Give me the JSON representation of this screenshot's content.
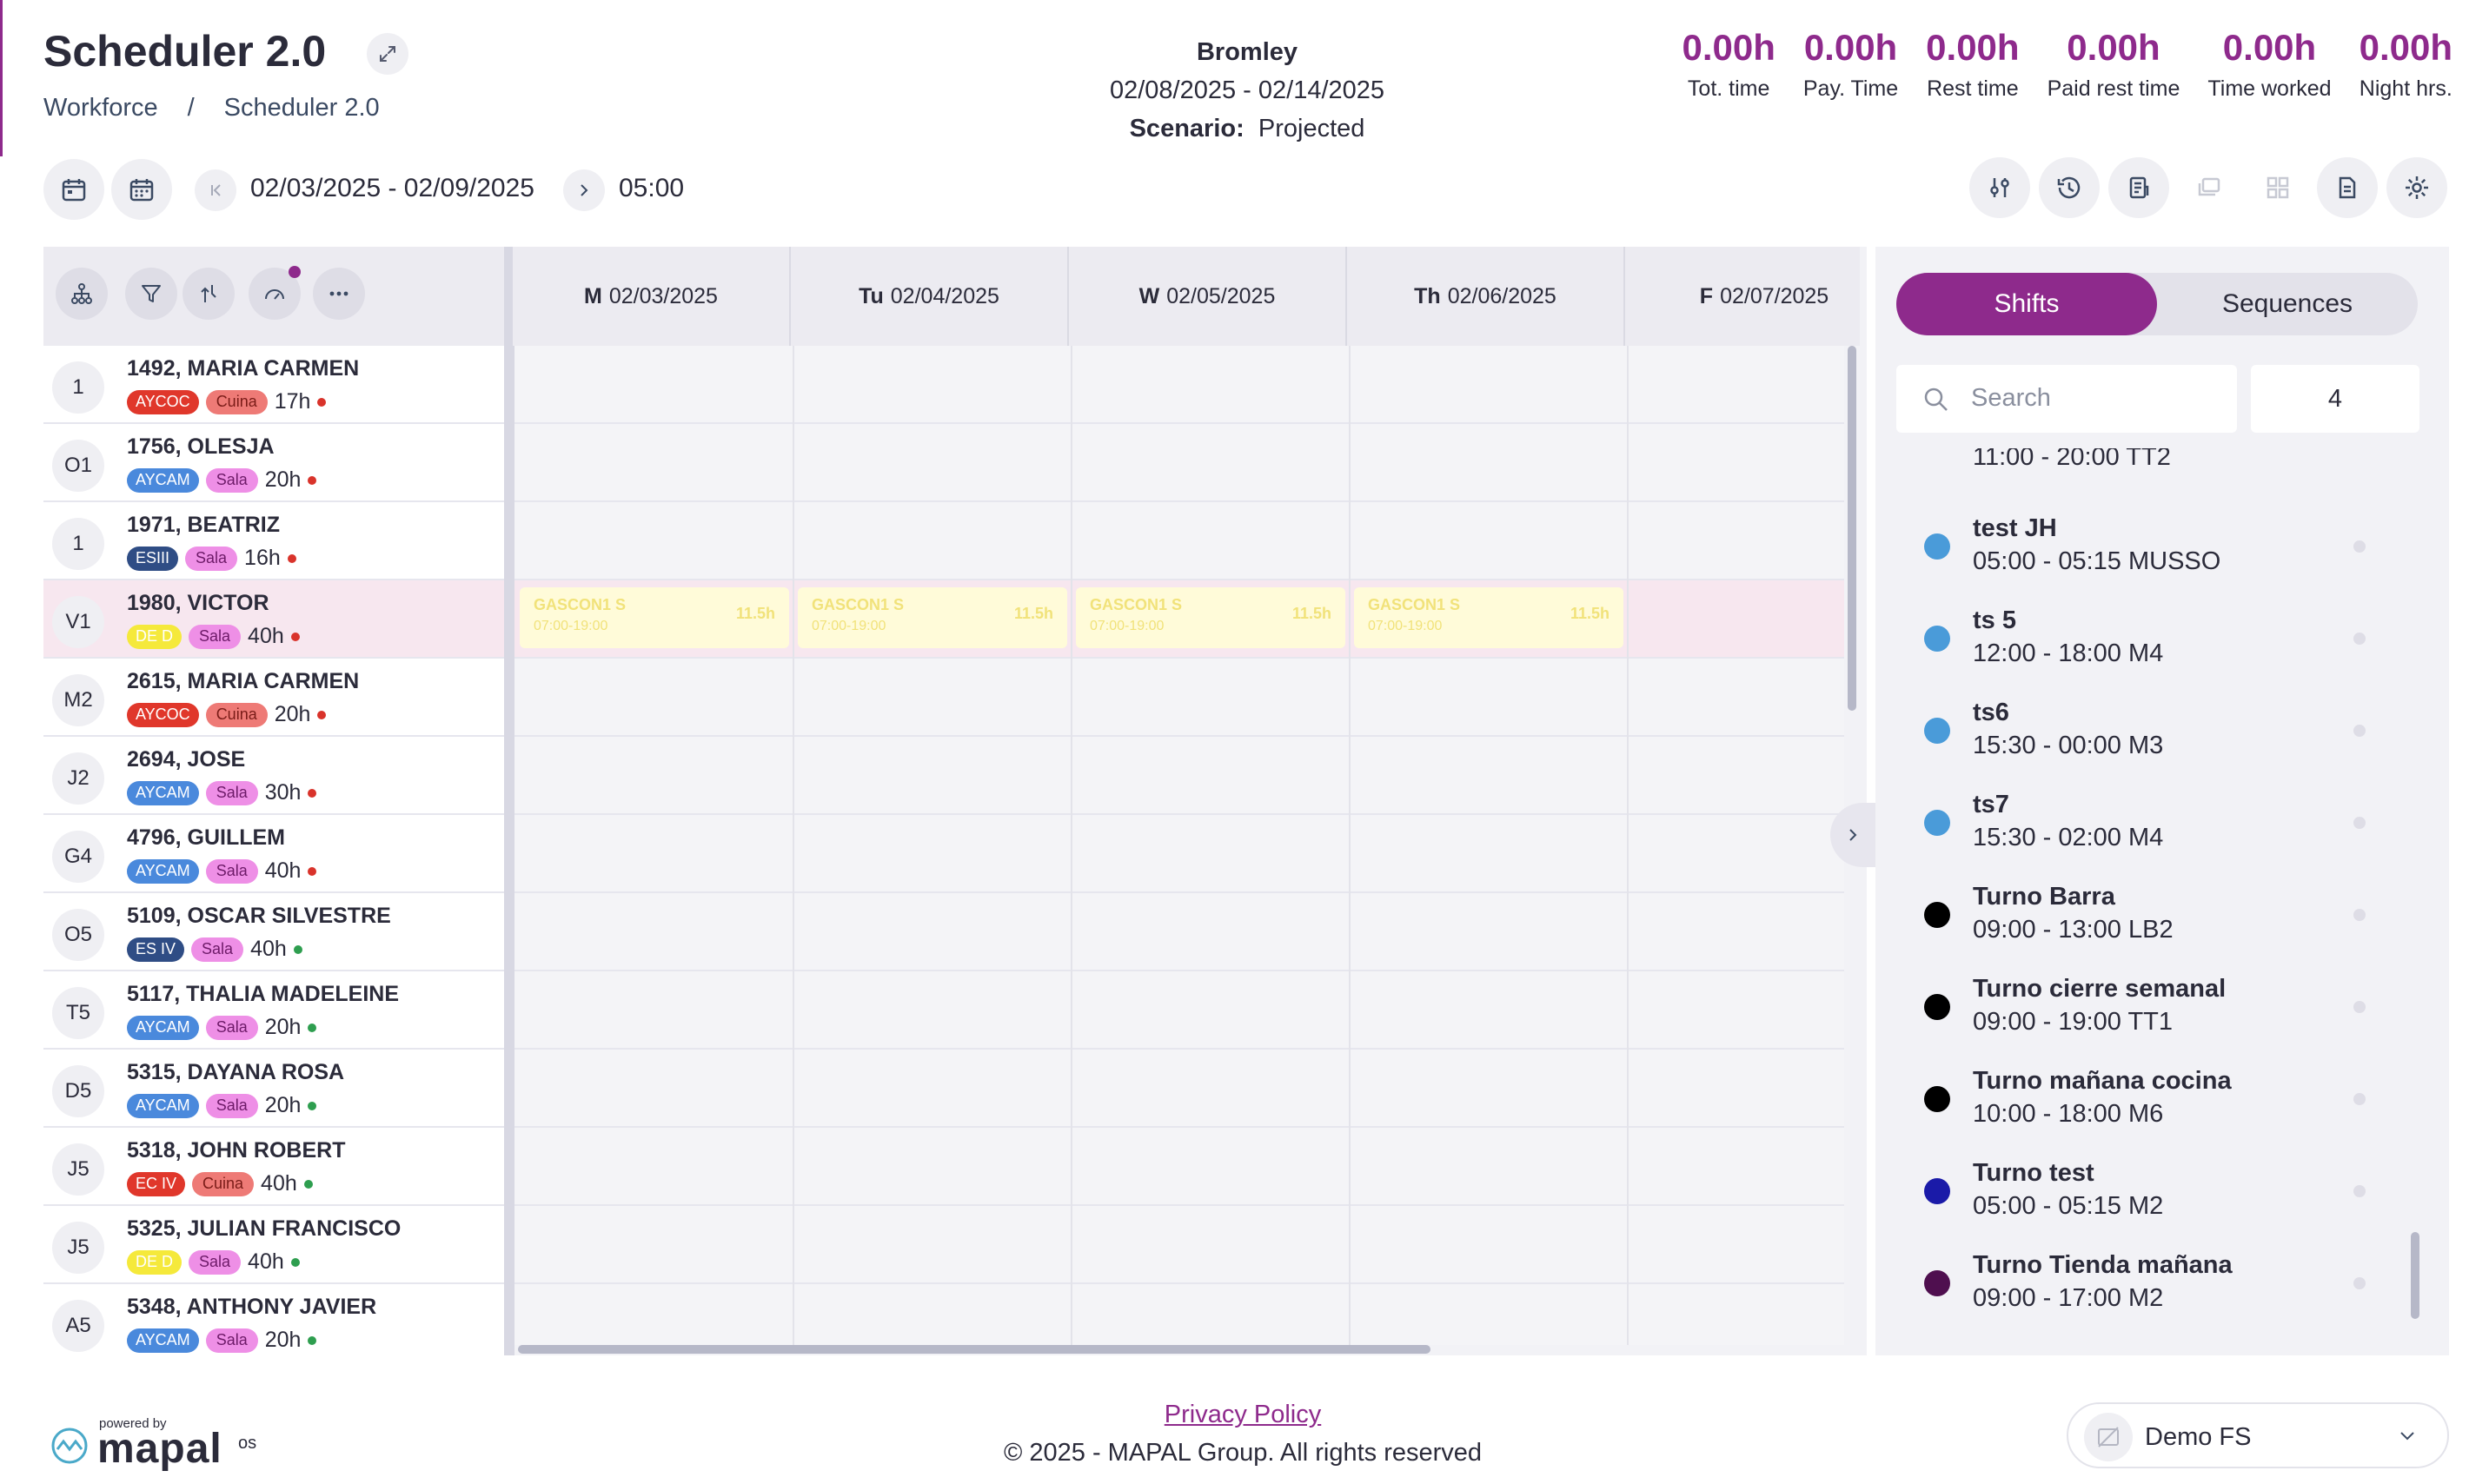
{
  "header": {
    "title": "Scheduler 2.0",
    "breadcrumb": [
      "Workforce",
      "/",
      "Scheduler 2.0"
    ],
    "location": "Bromley",
    "period": "02/08/2025 - 02/14/2025",
    "scenario_label": "Scenario:",
    "scenario_value": "Projected"
  },
  "metrics": [
    {
      "value": "0.00h",
      "label": "Tot. time"
    },
    {
      "value": "0.00h",
      "label": "Pay. Time"
    },
    {
      "value": "0.00h",
      "label": "Rest time"
    },
    {
      "value": "0.00h",
      "label": "Paid rest time"
    },
    {
      "value": "0.00h",
      "label": "Time worked"
    },
    {
      "value": "0.00h",
      "label": "Night hrs."
    }
  ],
  "toolbar": {
    "date_range": "02/03/2025 - 02/09/2025",
    "time": "05:00"
  },
  "days": [
    {
      "abbr": "M",
      "date": "02/03/2025"
    },
    {
      "abbr": "Tu",
      "date": "02/04/2025"
    },
    {
      "abbr": "W",
      "date": "02/05/2025"
    },
    {
      "abbr": "Th",
      "date": "02/06/2025"
    },
    {
      "abbr": "F",
      "date": "02/07/2025"
    }
  ],
  "employees": [
    {
      "initials": "1",
      "name": "1492, MARIA CARMEN",
      "tag1": "AYCOC",
      "tag2": "Cuina",
      "hours": "17h",
      "status": "red"
    },
    {
      "initials": "O1",
      "name": "1756, OLESJA",
      "tag1": "AYCAM",
      "tag2": "Sala",
      "hours": "20h",
      "status": "red"
    },
    {
      "initials": "1",
      "name": "1971, BEATRIZ",
      "tag1": "ESIII",
      "tag2": "Sala",
      "hours": "16h",
      "status": "red"
    },
    {
      "initials": "V1",
      "name": "1980, VICTOR",
      "tag1": "DE D",
      "tag2": "Sala",
      "hours": "40h",
      "status": "red"
    },
    {
      "initials": "M2",
      "name": "2615, MARIA CARMEN",
      "tag1": "AYCOC",
      "tag2": "Cuina",
      "hours": "20h",
      "status": "red"
    },
    {
      "initials": "J2",
      "name": "2694, JOSE",
      "tag1": "AYCAM",
      "tag2": "Sala",
      "hours": "30h",
      "status": "red"
    },
    {
      "initials": "G4",
      "name": "4796, GUILLEM",
      "tag1": "AYCAM",
      "tag2": "Sala",
      "hours": "40h",
      "status": "red"
    },
    {
      "initials": "O5",
      "name": "5109, OSCAR SILVESTRE",
      "tag1": "ES IV",
      "tag2": "Sala",
      "hours": "40h",
      "status": "green"
    },
    {
      "initials": "T5",
      "name": "5117, THALIA MADELEINE",
      "tag1": "AYCAM",
      "tag2": "Sala",
      "hours": "20h",
      "status": "green"
    },
    {
      "initials": "D5",
      "name": "5315, DAYANA ROSA",
      "tag1": "AYCAM",
      "tag2": "Sala",
      "hours": "20h",
      "status": "green"
    },
    {
      "initials": "J5",
      "name": "5318, JOHN ROBERT",
      "tag1": "EC IV",
      "tag2": "Cuina",
      "hours": "40h",
      "status": "green"
    },
    {
      "initials": "J5",
      "name": "5325, JULIAN FRANCISCO",
      "tag1": "DE D",
      "tag2": "Sala",
      "hours": "40h",
      "status": "green"
    },
    {
      "initials": "A5",
      "name": "5348, ANTHONY JAVIER",
      "tag1": "AYCAM",
      "tag2": "Sala",
      "hours": "20h",
      "status": "green"
    }
  ],
  "shift_cards": [
    {
      "name": "GASCON1 S",
      "time": "07:00-19:00",
      "hours": "11.5h"
    },
    {
      "name": "GASCON1 S",
      "time": "07:00-19:00",
      "hours": "11.5h"
    },
    {
      "name": "GASCON1 S",
      "time": "07:00-19:00",
      "hours": "11.5h"
    },
    {
      "name": "GASCON1 S",
      "time": "07:00-19:00",
      "hours": "11.5h"
    }
  ],
  "panel": {
    "tab_active": "Shifts",
    "tab_inactive": "Sequences",
    "search_placeholder": "Search",
    "count": "4",
    "partial_item": "11:00 - 20:00   TT2",
    "items": [
      {
        "name": "test JH",
        "detail": "05:00 - 05:15  MUSSO",
        "color": "#4a9bd9"
      },
      {
        "name": "ts 5",
        "detail": "12:00 - 18:00  M4",
        "color": "#4a9bd9"
      },
      {
        "name": "ts6",
        "detail": "15:30 - 00:00  M3",
        "color": "#4a9bd9"
      },
      {
        "name": "ts7",
        "detail": "15:30 - 02:00  M4",
        "color": "#4a9bd9"
      },
      {
        "name": "Turno Barra",
        "detail": "09:00 - 13:00  LB2",
        "color": "#000000"
      },
      {
        "name": "Turno cierre semanal",
        "detail": "09:00 - 19:00  TT1",
        "color": "#000000"
      },
      {
        "name": "Turno mañana cocina",
        "detail": "10:00 - 18:00  M6",
        "color": "#000000"
      },
      {
        "name": "Turno test",
        "detail": "05:00 - 05:15  M2",
        "color": "#1a1aa8"
      },
      {
        "name": "Turno Tienda mañana",
        "detail": "09:00 - 17:00  M2",
        "color": "#4f0f4f"
      }
    ]
  },
  "footer": {
    "powered_by": "powered by",
    "brand": "mapal",
    "brand_suffix": "os",
    "privacy": "Privacy Policy",
    "copyright": "© 2025 - MAPAL Group. All rights reserved",
    "environment": "Demo FS"
  },
  "colors": {
    "accent": "#8e2a8c",
    "tag_aycoc": "#e0372b",
    "tag_aycam": "#4a89dc",
    "tag_esiii": "#2f4d85",
    "tag_ded": "#f5e93b",
    "tag_sala": "#ee8fe6",
    "tag_cuina": "#ee7a76",
    "status_red": "#d9332b",
    "status_green": "#2e9e4f"
  }
}
